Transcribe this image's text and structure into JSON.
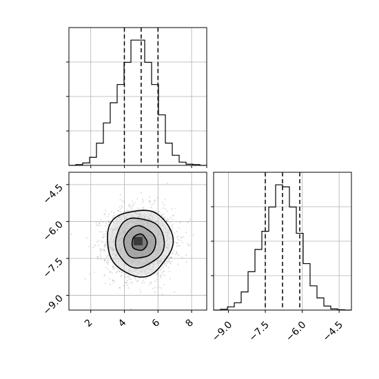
{
  "chart_data": {
    "type": "corner",
    "params": [
      {
        "name": "",
        "range": [
          0.7,
          8.9
        ],
        "ticks": [
          2,
          4,
          6,
          8
        ],
        "tick_labels": [
          "2",
          "4",
          "6",
          "8"
        ]
      },
      {
        "name": "",
        "range": [
          -9.6,
          -4.0
        ],
        "ticks": [
          -9.0,
          -7.5,
          -6.0,
          -4.5
        ],
        "tick_labels": [
          "−9.0",
          "−7.5",
          "−6.0",
          "−4.5"
        ]
      }
    ],
    "hist_x": {
      "bin_edges": [
        0.7,
        1.11,
        1.52,
        1.93,
        2.34,
        2.75,
        3.16,
        3.57,
        3.98,
        4.39,
        4.8,
        5.21,
        5.62,
        6.03,
        6.44,
        6.85,
        7.26,
        7.67,
        8.08,
        8.49,
        8.9
      ],
      "counts": [
        0,
        2,
        6,
        20,
        55,
        105,
        155,
        200,
        255,
        310,
        310,
        255,
        200,
        125,
        55,
        25,
        8,
        3,
        2,
        0
      ],
      "quantiles": [
        4.0,
        5.0,
        6.0
      ]
    },
    "hist_y": {
      "bin_edges": [
        -9.6,
        -9.32,
        -9.04,
        -8.76,
        -8.48,
        -8.2,
        -7.92,
        -7.64,
        -7.36,
        -7.08,
        -6.8,
        -6.52,
        -6.24,
        -5.96,
        -5.68,
        -5.4,
        -5.12,
        -4.84,
        -4.56,
        -4.28,
        -4.0
      ],
      "counts": [
        0,
        2,
        8,
        18,
        45,
        95,
        150,
        195,
        255,
        310,
        305,
        255,
        190,
        115,
        60,
        30,
        10,
        3,
        1,
        0
      ],
      "quantiles": [
        -7.5,
        -6.8,
        -6.1
      ]
    },
    "density_2d": {
      "center": [
        4.9,
        -6.85
      ],
      "contours": [
        {
          "level": "0.5",
          "sx": 0.45,
          "sy": 0.33
        },
        {
          "level": "1.0",
          "sx": 0.95,
          "sy": 0.65
        },
        {
          "level": "1.5",
          "sx": 1.45,
          "sy": 1.0
        },
        {
          "level": "2.0",
          "sx": 1.95,
          "sy": 1.35
        }
      ],
      "sigma_x": 1.0,
      "sigma_y": 0.7
    },
    "grid": true
  }
}
